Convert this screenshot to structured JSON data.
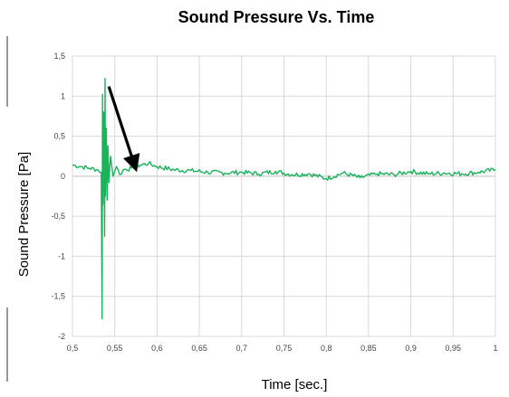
{
  "chart_data": {
    "type": "line",
    "title": "Sound Pressure Vs. Time",
    "xlabel": "Time [sec.]",
    "ylabel": "Sound Pressure [Pa]",
    "xlim": [
      0.5,
      1.0
    ],
    "ylim": [
      -2,
      1.5
    ],
    "x_ticks": [
      "0,5",
      "0,55",
      "0,6",
      "0,65",
      "0,7",
      "0,75",
      "0,8",
      "0,85",
      "0,9",
      "0,95",
      "1"
    ],
    "y_ticks": [
      "1,5",
      "1",
      "0,5",
      "0",
      "-0,5",
      "-1",
      "-1,5",
      "-2"
    ],
    "grid": true,
    "legend": "none",
    "colors": {
      "series": "#19b35a",
      "arrow": "#000000"
    },
    "series": [
      {
        "x": [
          0.5,
          0.51,
          0.52,
          0.53,
          0.534,
          0.535,
          0.5355,
          0.536,
          0.537,
          0.538,
          0.5385,
          0.539,
          0.54,
          0.541,
          0.542,
          0.543,
          0.545,
          0.548,
          0.552,
          0.556,
          0.56,
          0.57,
          0.58,
          0.59,
          0.6,
          0.62,
          0.64,
          0.66,
          0.68,
          0.7,
          0.72,
          0.74,
          0.76,
          0.78,
          0.8,
          0.82,
          0.84,
          0.86,
          0.88,
          0.9,
          0.92,
          0.94,
          0.96,
          0.98,
          1.0
        ],
        "y": [
          0.14,
          0.12,
          0.1,
          0.08,
          0.05,
          -1.78,
          1.02,
          -0.35,
          0.8,
          -0.75,
          1.22,
          -0.25,
          0.6,
          -0.3,
          0.38,
          -0.08,
          0.25,
          0.0,
          0.12,
          0.02,
          0.08,
          0.1,
          0.14,
          0.16,
          0.12,
          0.08,
          0.07,
          0.05,
          0.04,
          0.05,
          0.03,
          0.06,
          0.02,
          0.03,
          -0.03,
          0.04,
          -0.02,
          0.03,
          0.02,
          0.06,
          0.03,
          0.04,
          0.03,
          0.05,
          0.08
        ]
      }
    ],
    "annotations": [
      {
        "type": "arrow",
        "from": [
          0.543,
          1.12
        ],
        "to": [
          0.574,
          0.12
        ]
      }
    ]
  }
}
